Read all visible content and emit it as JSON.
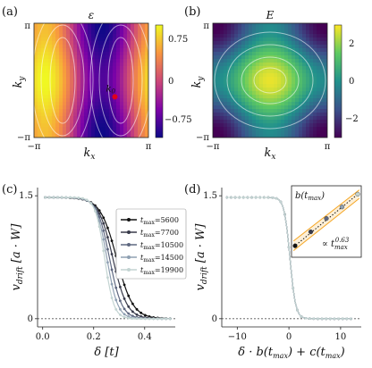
{
  "chart_data": [
    {
      "panel": "(a)",
      "type": "heatmap",
      "title": "ε",
      "xlabel": "k_x",
      "ylabel": "k_y",
      "x_ticks": [
        "−π",
        "π"
      ],
      "y_ticks": [
        "π",
        "−π"
      ],
      "colorbar": {
        "ticks": [
          "0.75",
          "0",
          "−0.75"
        ],
        "range": [
          -1,
          1
        ]
      },
      "annotation": {
        "label": "k₀",
        "x": 1.3,
        "y": -0.9,
        "color": "#e0001b"
      }
    },
    {
      "panel": "(b)",
      "type": "heatmap",
      "title": "E",
      "xlabel": "k_x",
      "ylabel": "k_y",
      "x_ticks": [
        "−π",
        "π"
      ],
      "y_ticks": [
        "π",
        "−π"
      ],
      "colorbar": {
        "ticks": [
          "2",
          "0",
          "−2"
        ],
        "range": [
          -3,
          3
        ]
      }
    },
    {
      "panel": "(c)",
      "type": "line",
      "xlabel": "δ [t]",
      "ylabel": "v_drift [a · W]",
      "x_ticks": [
        "0.0",
        "0.2",
        "0.4"
      ],
      "y_ticks": [
        "1.5",
        "0"
      ],
      "xlim": [
        -0.02,
        0.52
      ],
      "ylim": [
        -0.1,
        1.6
      ],
      "legend_title": "t_max",
      "legend_position": "top-right",
      "series": [
        {
          "name": "t_max=5600",
          "color": "#111111",
          "x0": 0.29,
          "w": 0.032
        },
        {
          "name": "t_max=7700",
          "color": "#383a4a",
          "x0": 0.275,
          "w": 0.028
        },
        {
          "name": "t_max=10500",
          "color": "#5f6880",
          "x0": 0.262,
          "w": 0.024
        },
        {
          "name": "t_max=14500",
          "color": "#8fa0b2",
          "x0": 0.252,
          "w": 0.021
        },
        {
          "name": "t_max=19900",
          "color": "#c3d4d2",
          "x0": 0.243,
          "w": 0.018
        }
      ],
      "plateau": 1.48
    },
    {
      "panel": "(d)",
      "type": "line",
      "xlabel": "δ · b(t_max) + c(t_max)",
      "ylabel": "v_drift [a · W]",
      "x_ticks": [
        "−10",
        "0",
        "10"
      ],
      "y_ticks": [
        "1.5",
        "0"
      ],
      "xlim": [
        -13,
        14
      ],
      "ylim": [
        -0.1,
        1.6
      ],
      "inset": {
        "ylabel": "b(t_max)",
        "annotation": "∝ t_max^0.63",
        "points_x": [
          0,
          1,
          2,
          3,
          4
        ],
        "points_y": [
          0.1,
          0.33,
          0.55,
          0.74,
          0.95
        ],
        "band_color": "#f5a623"
      }
    }
  ],
  "panel_labels": {
    "a": "(a)",
    "b": "(b)",
    "c": "(c)",
    "d": "(d)"
  },
  "titles": {
    "a": "ε",
    "b": "E"
  },
  "axes": {
    "a_x": "k",
    "a_x_sub": "x",
    "a_y": "k",
    "a_y_sub": "y",
    "b_x": "k",
    "b_x_sub": "x",
    "b_y": "k",
    "b_y_sub": "y",
    "c_x": "δ [t]",
    "c_y": "v",
    "c_y_sub": "drift",
    "c_y_unit": "[a · W]",
    "d_x": "δ · b(t",
    "d_x_sub": "max",
    "d_x_mid": ") + c(t",
    "d_x_sub2": "max",
    "d_x_end": ")",
    "d_y": "v",
    "d_y_sub": "drift",
    "d_y_unit": "[a · W]"
  },
  "ticks": {
    "a_x": [
      "−π",
      "π"
    ],
    "a_y": [
      "π",
      "−π"
    ],
    "a_cb": [
      "0.75",
      "0",
      "−0.75"
    ],
    "b_x": [
      "−π",
      "π"
    ],
    "b_y": [
      "π",
      "−π"
    ],
    "b_cb": [
      "2",
      "0",
      "−2"
    ],
    "c_x": [
      "0.0",
      "0.2",
      "0.4"
    ],
    "c_y": [
      "1.5",
      "0"
    ],
    "d_x": [
      "−10",
      "0",
      "10"
    ],
    "d_y": [
      "1.5",
      "0"
    ]
  },
  "annotation_k0": {
    "k": "k",
    "sub": "0"
  },
  "inset": {
    "b": "b(t",
    "b_sub": "max",
    "b_end": ")",
    "prop": "∝ t",
    "prop_sub": "max",
    "prop_sup": "0.63"
  },
  "legend": {
    "prefix": "t",
    "sub": "max",
    "entries": [
      "=5600",
      "=7700",
      "=10500",
      "=14500",
      "=19900"
    ]
  }
}
